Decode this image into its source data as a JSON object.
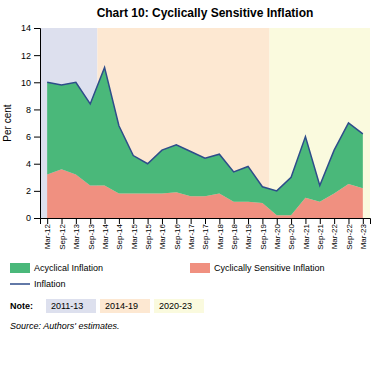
{
  "chart_data": {
    "type": "area",
    "stacked": true,
    "title": "Chart 10: Cyclically Sensitive Inflation",
    "y_label": "Per cent",
    "ylim": [
      0,
      14
    ],
    "yticks": [
      0,
      2,
      4,
      6,
      8,
      10,
      12,
      14
    ],
    "grid": false,
    "legend": "bottom",
    "categories": [
      "Mar-12",
      "Sep-12",
      "Mar-13",
      "Sep-13",
      "Mar-14",
      "Sep-14",
      "Mar-15",
      "Sep-15",
      "Mar-16",
      "Sep-16",
      "Mar-17",
      "Sep-17",
      "Mar-18",
      "Sep-18",
      "Mar-19",
      "Sep-19",
      "Mar-20",
      "Sep-20",
      "Mar-21",
      "Sep-21",
      "Mar-22",
      "Sep-22",
      "Mar-23"
    ],
    "series": [
      {
        "name": "Acyclical Inflation",
        "type": "area",
        "color": "#4ab87a",
        "values": [
          6.8,
          6.2,
          6.8,
          6.0,
          8.7,
          5.0,
          2.8,
          2.2,
          3.2,
          3.5,
          3.3,
          2.8,
          2.9,
          2.2,
          2.6,
          1.2,
          1.8,
          2.8,
          4.5,
          1.2,
          3.2,
          4.5,
          4.0
        ]
      },
      {
        "name": "Cyclically Sensitive Inflation",
        "type": "area",
        "color": "#f09080",
        "values": [
          3.2,
          3.6,
          3.2,
          2.4,
          2.4,
          1.8,
          1.8,
          1.8,
          1.8,
          1.9,
          1.6,
          1.6,
          1.8,
          1.2,
          1.2,
          1.1,
          0.2,
          0.2,
          1.5,
          1.2,
          1.8,
          2.5,
          2.2
        ]
      },
      {
        "name": "Inflation",
        "type": "line",
        "color": "#2e4d8a",
        "values": [
          10.0,
          9.8,
          10.0,
          8.4,
          11.1,
          6.8,
          4.6,
          4.0,
          5.0,
          5.4,
          4.9,
          4.4,
          4.7,
          3.4,
          3.8,
          2.3,
          2.0,
          3.0,
          6.0,
          2.4,
          5.0,
          7.0,
          6.2
        ]
      }
    ],
    "periods": [
      {
        "label": "2011-13",
        "color": "#dde0ee",
        "start": "Mar-12",
        "end": "Sep-13"
      },
      {
        "label": "2014-19",
        "color": "#fde8d2",
        "start": "Mar-14",
        "end": "Sep-19"
      },
      {
        "label": "2020-23",
        "color": "#fafade",
        "start": "Mar-20",
        "end": "Mar-23"
      }
    ],
    "note": "Note:",
    "source": "Source: Authors' estimates."
  }
}
